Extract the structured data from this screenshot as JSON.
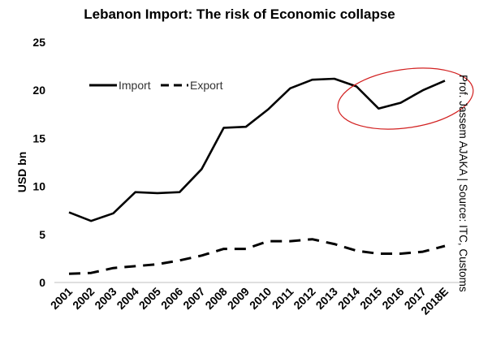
{
  "chart_data": {
    "type": "line",
    "title": "Lebanon Import: The risk of Economic collapse",
    "ylabel": "USD bn",
    "xlabel": "",
    "categories": [
      "2001",
      "2002",
      "2003",
      "2004",
      "2005",
      "2006",
      "2007",
      "2008",
      "2009",
      "2010",
      "2011",
      "2012",
      "2013",
      "2014",
      "2015",
      "2016",
      "2017",
      "2018E"
    ],
    "ylim": [
      0,
      25
    ],
    "yticks": [
      "0",
      "5",
      "10",
      "15",
      "20",
      "25"
    ],
    "series": [
      {
        "name": "Import",
        "style": "solid",
        "color": "#000000",
        "values": [
          7.3,
          6.4,
          7.2,
          9.4,
          9.3,
          9.4,
          11.8,
          16.1,
          16.2,
          18.0,
          20.2,
          21.1,
          21.2,
          20.4,
          18.1,
          18.7,
          20.0,
          21.0
        ]
      },
      {
        "name": "Export",
        "style": "dashed",
        "color": "#000000",
        "values": [
          0.9,
          1.0,
          1.5,
          1.7,
          1.9,
          2.3,
          2.8,
          3.5,
          3.5,
          4.3,
          4.3,
          4.5,
          4.0,
          3.3,
          3.0,
          3.0,
          3.2,
          3.8
        ]
      }
    ],
    "grid": false,
    "legend_placement": "top-left",
    "highlight_color": "#d22020",
    "side_note": "Prof. Jassem AJAKA | Source: ITC, Customs"
  }
}
